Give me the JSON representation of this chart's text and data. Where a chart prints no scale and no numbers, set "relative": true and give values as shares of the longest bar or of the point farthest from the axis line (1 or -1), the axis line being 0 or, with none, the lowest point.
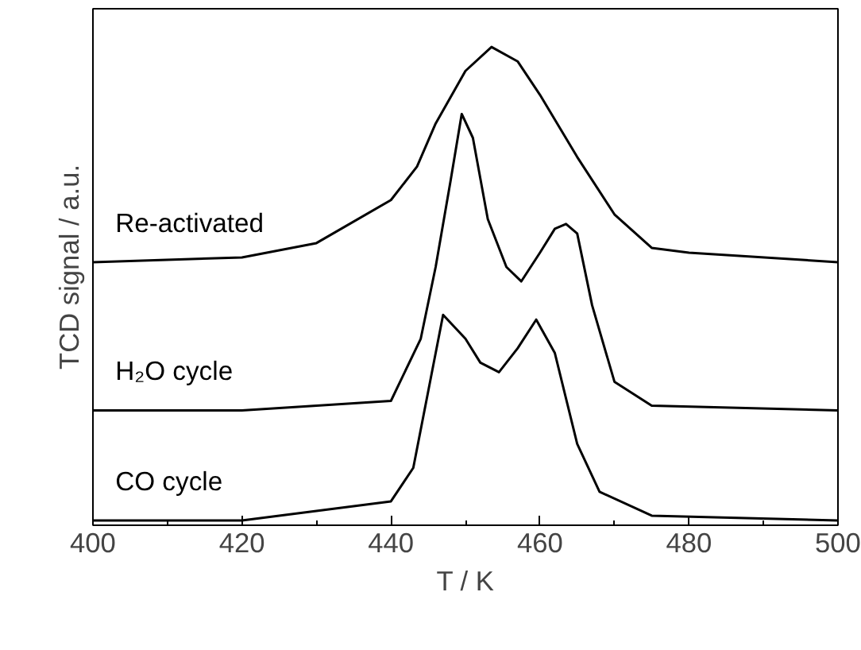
{
  "chart_data": {
    "type": "line",
    "relative": true,
    "xlabel": "T / K",
    "ylabel": "TCD signal / a.u.",
    "xlim": [
      400,
      500
    ],
    "xticks": [
      400,
      420,
      440,
      460,
      480,
      500
    ],
    "tick_labels": "x",
    "line_style": "solid",
    "marker": "none",
    "series": [
      {
        "name": "CO cycle",
        "color": "#000000",
        "x": [
          400,
          420,
          440,
          443,
          445,
          447,
          450,
          452,
          454.5,
          457,
          459.5,
          462,
          465,
          468,
          475,
          500
        ],
        "values": [
          0.01,
          0.01,
          0.05,
          0.12,
          0.28,
          0.44,
          0.39,
          0.34,
          0.32,
          0.37,
          0.43,
          0.36,
          0.17,
          0.07,
          0.02,
          0.01
        ]
      },
      {
        "name": "H₂O cycle",
        "color": "#000000",
        "x": [
          400,
          420,
          440,
          444,
          446,
          448,
          449.5,
          451,
          453,
          455.5,
          457.5,
          460,
          462,
          463.5,
          465,
          467,
          470,
          475,
          500
        ],
        "values": [
          0.24,
          0.24,
          0.26,
          0.39,
          0.54,
          0.72,
          0.86,
          0.81,
          0.64,
          0.54,
          0.51,
          0.57,
          0.62,
          0.63,
          0.61,
          0.46,
          0.3,
          0.25,
          0.24
        ]
      },
      {
        "name": "Re-activated",
        "color": "#000000",
        "x": [
          400,
          420,
          430,
          440,
          443.5,
          446,
          450,
          453.5,
          457,
          460,
          465,
          470,
          475,
          480,
          500
        ],
        "values": [
          0.55,
          0.56,
          0.59,
          0.68,
          0.75,
          0.84,
          0.95,
          1,
          0.97,
          0.9,
          0.77,
          0.65,
          0.58,
          0.57,
          0.55
        ]
      }
    ]
  }
}
